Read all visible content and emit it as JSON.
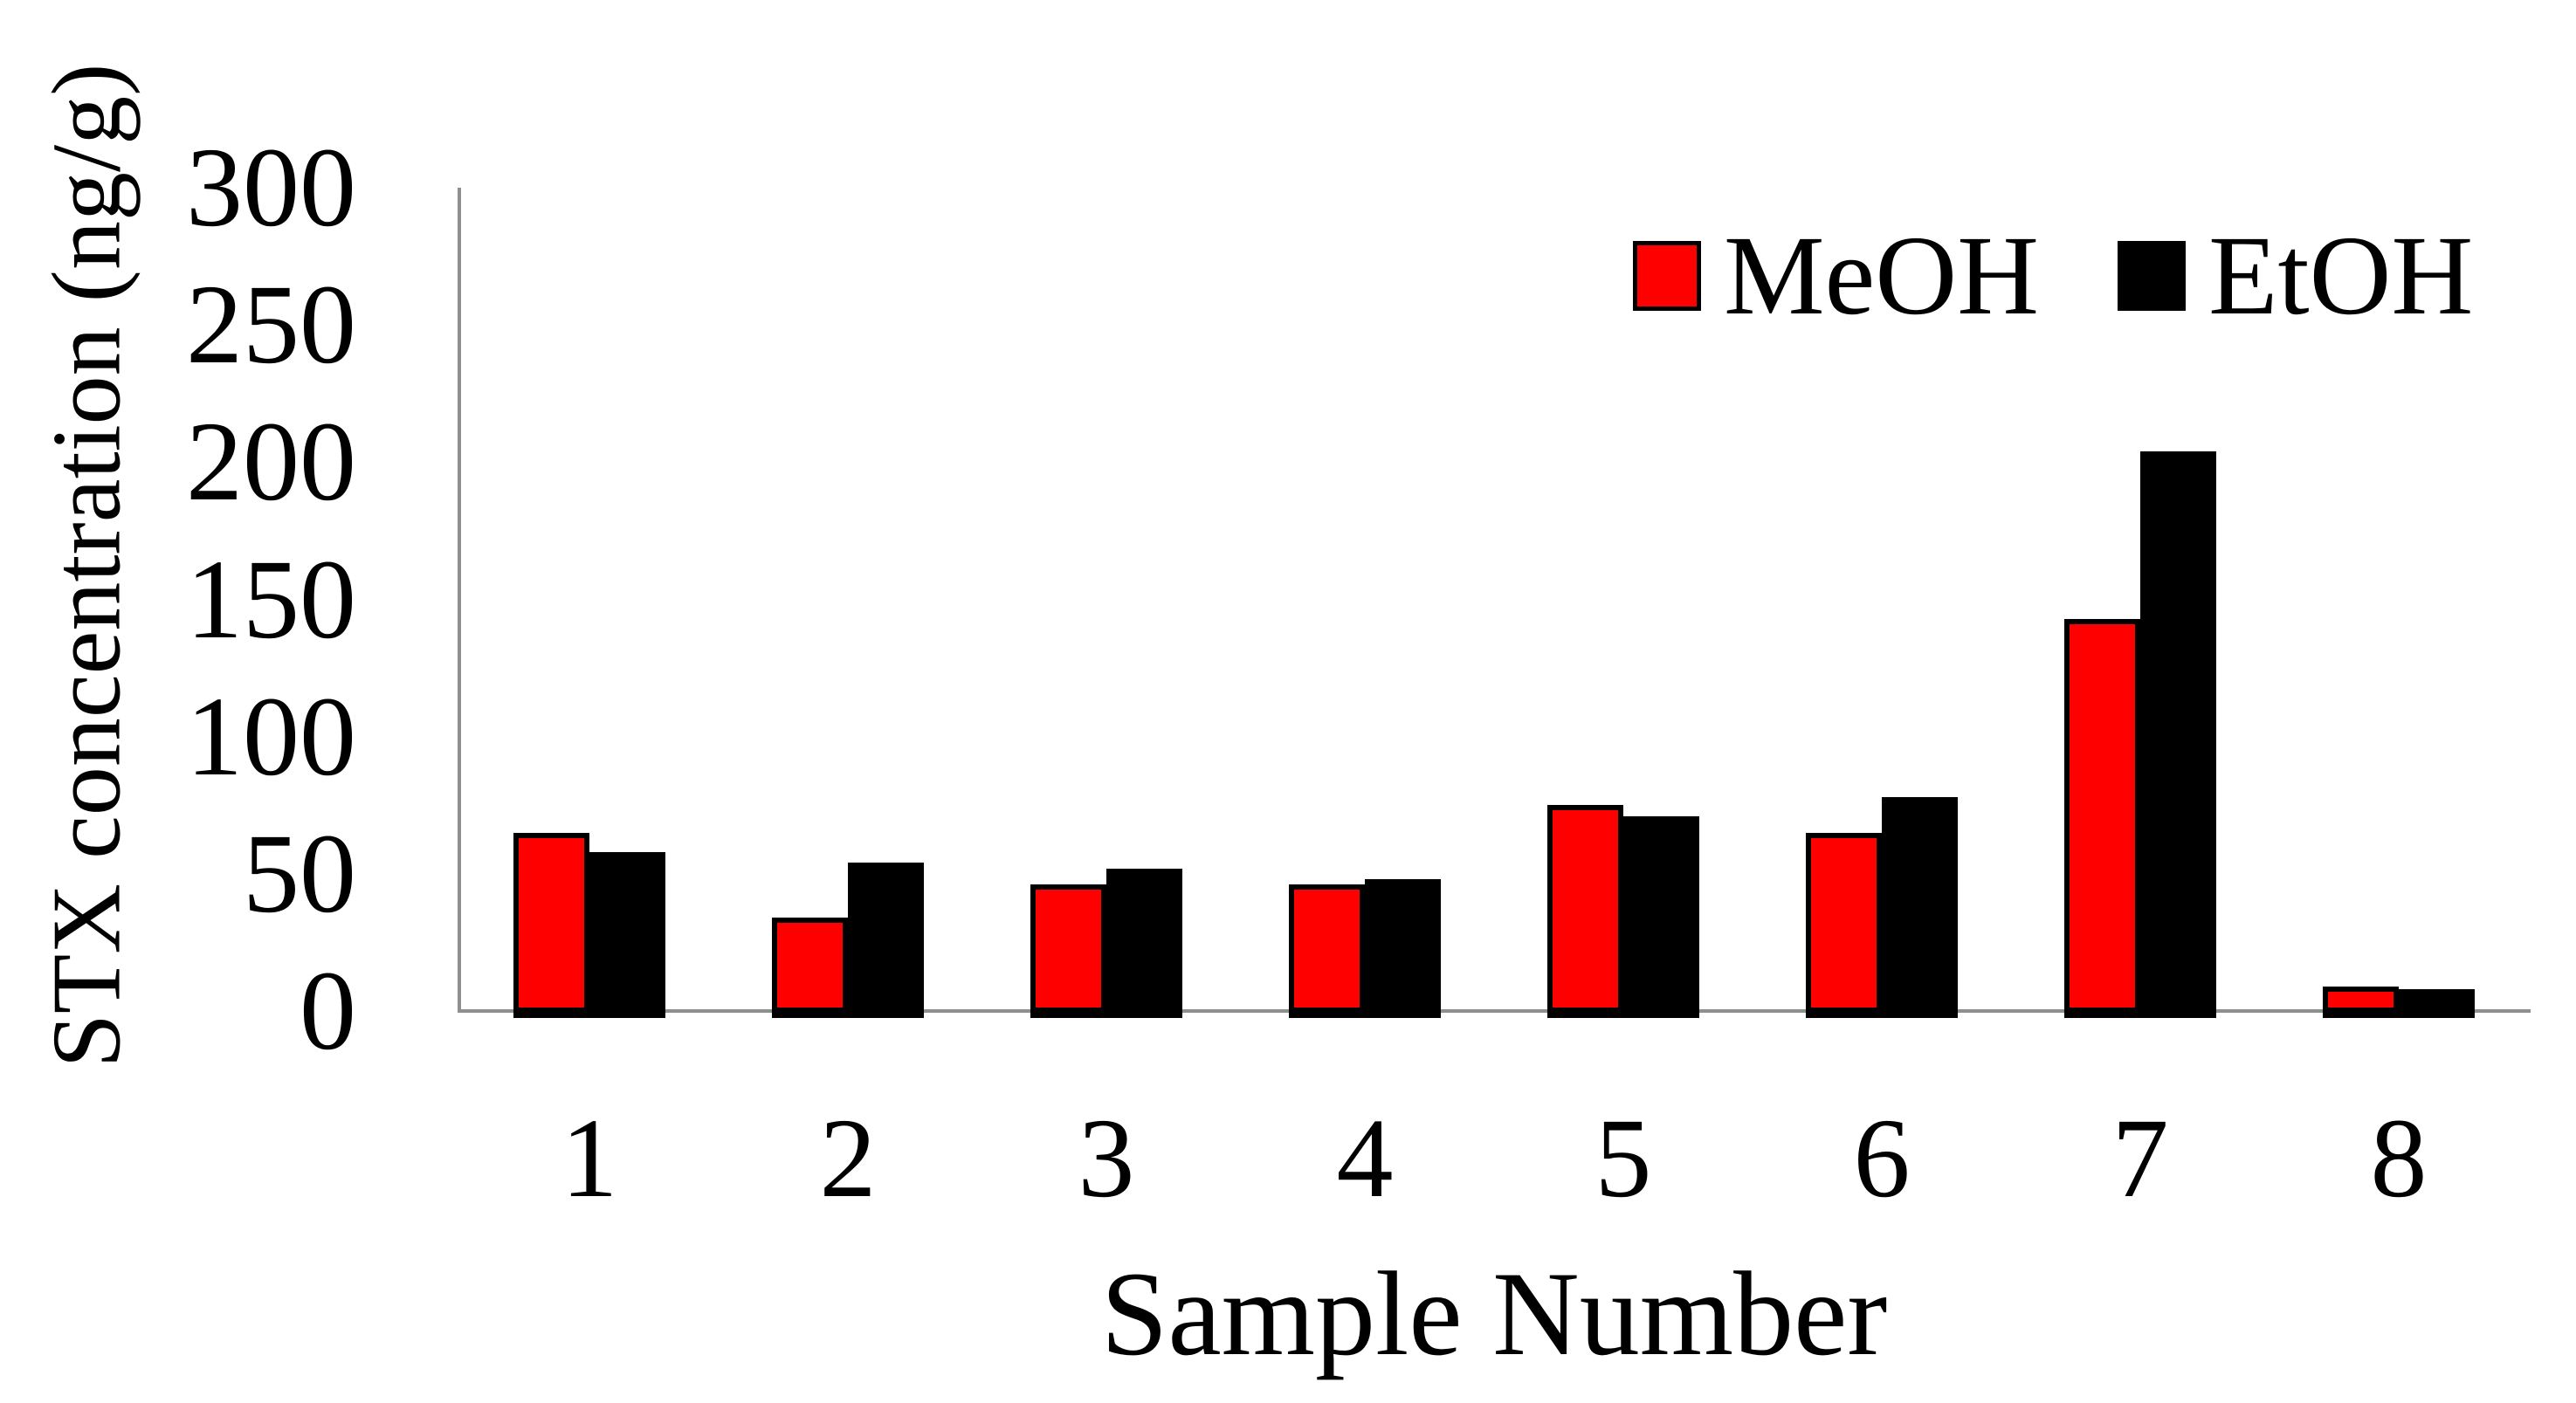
{
  "chart_data": {
    "type": "bar",
    "title": "",
    "xlabel": "Sample Number",
    "ylabel": "STX concentration (ng/g)",
    "categories": [
      "1",
      "2",
      "3",
      "4",
      "5",
      "6",
      "7",
      "8"
    ],
    "series": [
      {
        "name": "MeOH",
        "color": "#fe0000",
        "values": [
          65,
          34,
          46,
          46,
          75,
          65,
          143,
          9
        ]
      },
      {
        "name": "EtOH",
        "color": "#000000",
        "values": [
          58,
          54,
          52,
          48,
          71,
          78,
          204,
          8
        ]
      }
    ],
    "ylim": [
      0,
      300
    ],
    "yticks": [
      0,
      50,
      100,
      150,
      200,
      250,
      300
    ],
    "grid": false,
    "legend_position": "top-right",
    "axis_color": "#8f8f8f",
    "bar_border_color": "#000000",
    "background_color": "#ffffff"
  }
}
